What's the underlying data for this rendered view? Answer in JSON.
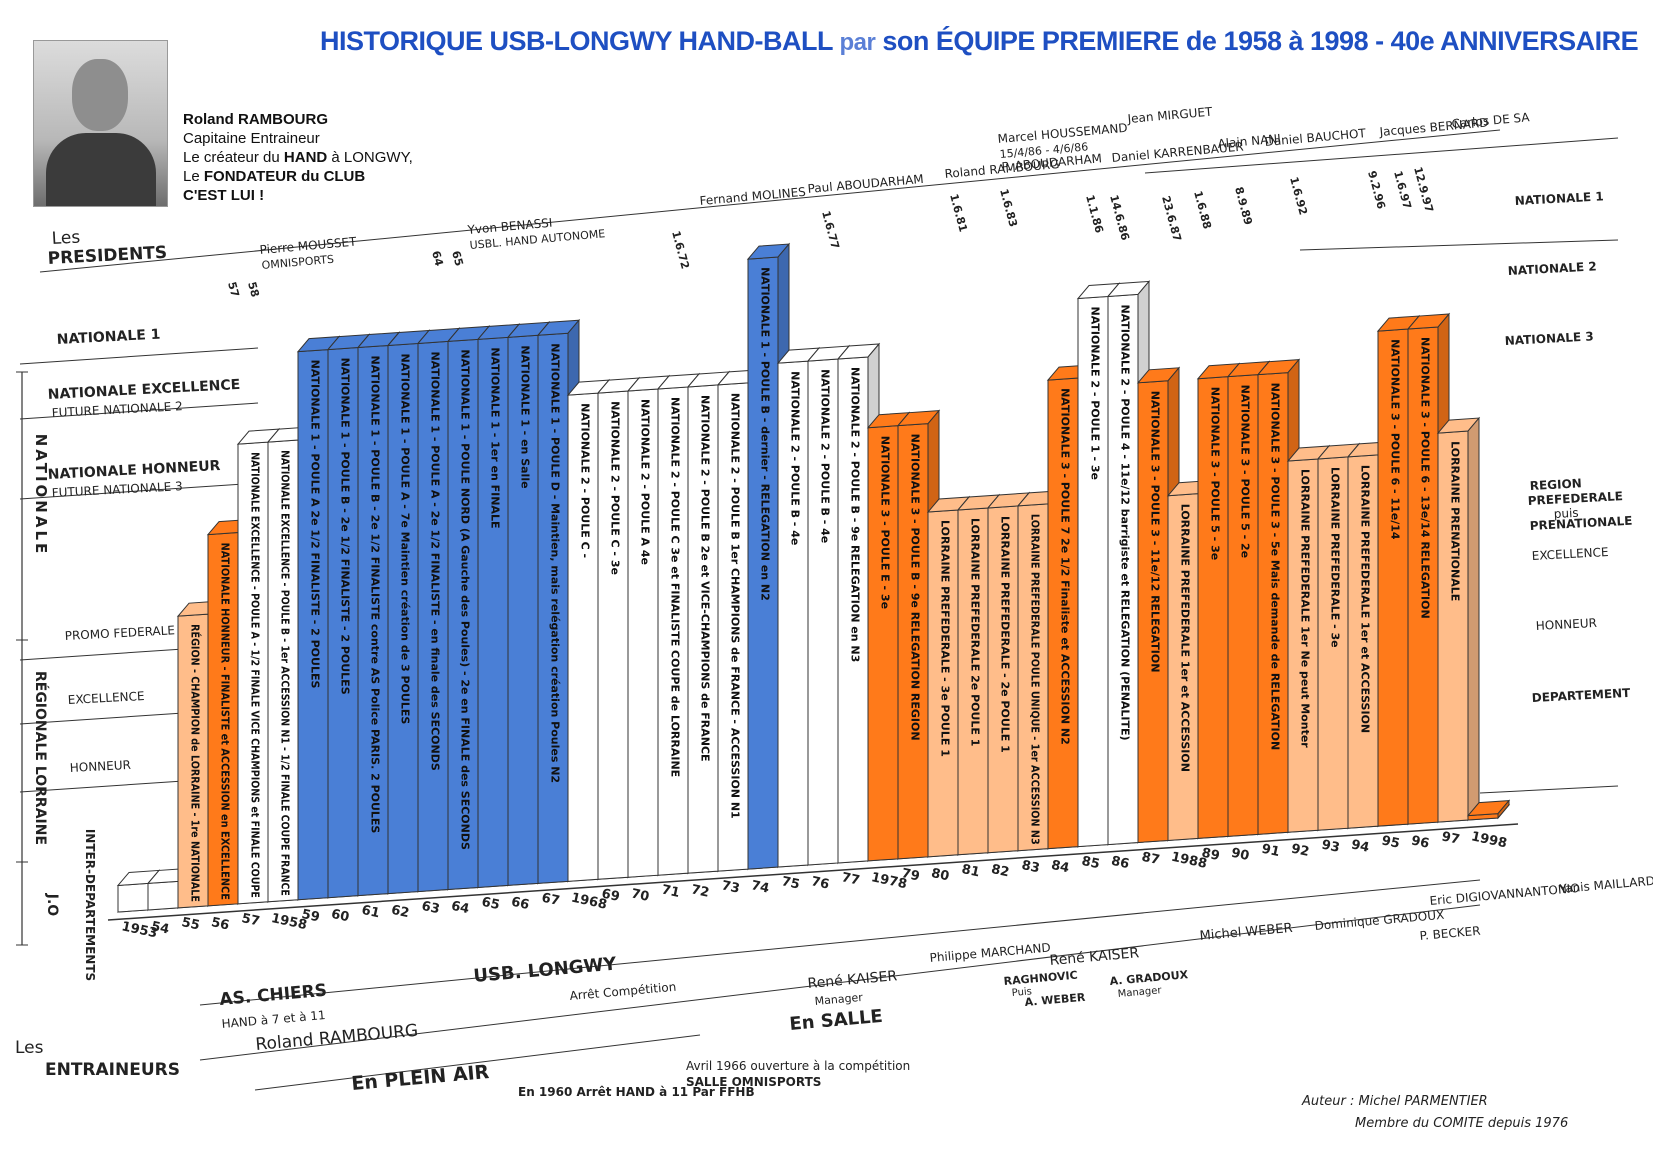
{
  "header": {
    "title_part1": "HISTORIQUE USB-LONGWY HAND-BALL ",
    "title_par": "par",
    "title_part2": " son ÉQUIPE PREMIERE de 1958 à 1998 - 40e ANNIVERSAIRE"
  },
  "bio": {
    "name": "Roland RAMBOURG",
    "line1": "Capitaine Entraineur",
    "line2_pre": "Le créateur du ",
    "line2_bold": "HAND",
    "line2_post": " à LONGWY,",
    "line3_pre": "Le ",
    "line3_bold": "FONDATEUR du CLUB",
    "line4": "C'EST LUI !"
  },
  "colors": {
    "blue": "#4a7fd6",
    "orange": "#ff7a1a",
    "light_orange": "#ffbd8a",
    "white": "#ffffff",
    "title": "#1e4fc2"
  },
  "levels_left": {
    "nationale": "NATIONALE",
    "regionale": "RÉGIONALE LORRAINE",
    "jo": "J.O",
    "n1": "NATIONALE 1",
    "nexc": "NATIONALE EXCELLENCE",
    "nexc_sub": "FUTURE NATIONALE 2",
    "nhon": "NATIONALE HONNEUR",
    "nhon_sub": "FUTURE NATIONALE 3",
    "promo": "PROMO FEDERALE",
    "exc": "EXCELLENCE",
    "hon": "HONNEUR",
    "interdep": "INTER-DEPARTEMENTS"
  },
  "levels_right": {
    "n1": "NATIONALE 1",
    "n2": "NATIONALE 2",
    "n3": "NATIONALE 3",
    "region": "REGION",
    "pref": "PREFEDERALE",
    "puis": "puis",
    "prenat": "PRENATIONALE",
    "exc": "EXCELLENCE",
    "hon": "HONNEUR",
    "dep": "DEPARTEMENT"
  },
  "presidents": {
    "label1": "Les",
    "label2": "PRESIDENTS",
    "entries": [
      {
        "name": "Pierre MOUSSET",
        "sub": "OMNISPORTS"
      },
      {
        "name": "Yvon BENASSI",
        "sub": "USBL. HAND AUTONOME"
      },
      {
        "name": "Fernand MOLINES",
        "sub": ""
      },
      {
        "name": "Paul ABOUDARHAM",
        "sub": ""
      },
      {
        "name": "Roland RAMBOURG",
        "sub": ""
      },
      {
        "name": "P. ABOUDARHAM",
        "sub": ""
      },
      {
        "name": "Marcel HOUSSEMAND",
        "sub": "15/4/86 - 4/6/86"
      },
      {
        "name": "Jean MIRGUET",
        "sub": ""
      },
      {
        "name": "Daniel KARRENBAUER",
        "sub": ""
      },
      {
        "name": "Alain NANI",
        "sub": ""
      },
      {
        "name": "Daniel BAUCHOT",
        "sub": ""
      },
      {
        "name": "Jacques BERNARD",
        "sub": ""
      },
      {
        "name": "Carlos DE SA",
        "sub": ""
      }
    ],
    "dates": [
      "57",
      "58",
      "64",
      "65",
      "1.6.72",
      "1.6.77",
      "1.6.81",
      "1.6.83",
      "1.1.86",
      "14.6.86",
      "23.6.87",
      "1.6.88",
      "8.9.89",
      "1.6.92",
      "9.2.96",
      "1.6.97",
      "12.9.97"
    ]
  },
  "trainers": {
    "label1": "Les",
    "label2": "ENTRAINEURS",
    "as_chiers": "AS. CHIERS",
    "hand7": "HAND à 7 et à 11",
    "rambourg": "Roland RAMBOURG",
    "usb": "USB. LONGWY",
    "kaiser1": "René KAISER",
    "manager": "Manager",
    "marchand": "Philippe MARCHAND",
    "kaiser2": "René KAISER",
    "raghnovic": "RAGHNOVIC",
    "puis": "Puis",
    "aweber": "A. WEBER",
    "agradoux": "A. GRADOUX",
    "manager2": "Manager",
    "mweber": "Michel WEBER",
    "dgradoux": "Dominique GRADOUX",
    "pbecker": "P. BECKER",
    "eric": "Eric DIGIOVANNANTONIO",
    "yanis": "Yanis MAILLARD",
    "arret": "Arrêt Compétition",
    "en_salle": "En SALLE",
    "plein_air": "En PLEIN AIR",
    "note1960": "En 1960 Arrêt HAND à 11 Par FFHB",
    "note1966_1": "Avril 1966 ouverture à la compétition",
    "note1966_2": "SALLE OMNISPORTS"
  },
  "author": {
    "line1": "Auteur : Michel PARMENTIER",
    "line2": "Membre du COMITE depuis 1976"
  },
  "chart_data": {
    "type": "bar",
    "level_scale": [
      "J.O",
      "HONNEUR",
      "EXCELLENCE",
      "PROMO FEDERALE",
      "NATIONALE HONNEUR",
      "NATIONALE EXCELLENCE",
      "NATIONALE 1"
    ],
    "bars": [
      {
        "year": "1953",
        "level": 0.3,
        "color": "white",
        "text": ""
      },
      {
        "year": "54",
        "level": 0.3,
        "color": "white",
        "text": ""
      },
      {
        "year": "55",
        "level": 3.3,
        "color": "light_orange",
        "text": "RÉGION - CHAMPION de LORRAINE - 1re NATIONALE"
      },
      {
        "year": "56",
        "level": 4.2,
        "color": "orange",
        "text": "NATIONALE HONNEUR - FINALISTE et ACCESSION en EXCELLENCE"
      },
      {
        "year": "57",
        "level": 5.2,
        "color": "white",
        "text": "NATIONALE EXCELLENCE - POULE A - 1/2 FINALE VICE CHAMPIONS et FINALE COUPE"
      },
      {
        "year": "1958",
        "level": 5.2,
        "color": "white",
        "text": "NATIONALE EXCELLENCE - POULE B - 1er ACCESSION N1 - 1/2 FINALE COUPE FRANCE"
      },
      {
        "year": "59",
        "level": 6.2,
        "color": "blue",
        "text": "NATIONALE 1 - POULE A 2e 1/2 FINALISTE - 2 POULES"
      },
      {
        "year": "60",
        "level": 6.2,
        "color": "blue",
        "text": "NATIONALE 1 - POULE B - 2e 1/2 FINALISTE - 2 POULES"
      },
      {
        "year": "61",
        "level": 6.2,
        "color": "blue",
        "text": "NATIONALE 1 - POULE B - 2e 1/2 FINALISTE contre AS Police PARIS. 2 POULES"
      },
      {
        "year": "62",
        "level": 6.2,
        "color": "blue",
        "text": "NATIONALE 1 - POULE A - 7e Maintien création de 3 POULES"
      },
      {
        "year": "63",
        "level": 6.2,
        "color": "blue",
        "text": "NATIONALE 1 - POULE A - 2e 1/2 FINALISTE - en finale des SECONDS"
      },
      {
        "year": "64",
        "level": 6.2,
        "color": "blue",
        "text": "NATIONALE 1 - POULE NORD (A Gauche des Poules) - 2e en FINALE des SECONDS"
      },
      {
        "year": "65",
        "level": 6.2,
        "color": "blue",
        "text": "NATIONALE 1 - 1er en FINALE"
      },
      {
        "year": "66",
        "level": 6.2,
        "color": "blue",
        "text": "NATIONALE 1 - en Salle"
      },
      {
        "year": "67",
        "level": 6.2,
        "color": "blue",
        "text": "NATIONALE 1 - POULE D - Maintien, mais relégation création Poules N2"
      },
      {
        "year": "1968",
        "level": 5.5,
        "color": "white",
        "text": "NATIONALE 2 - POULE C -"
      },
      {
        "year": "69",
        "level": 5.5,
        "color": "white",
        "text": "NATIONALE 2 - POULE C - 3e"
      },
      {
        "year": "70",
        "level": 5.5,
        "color": "white",
        "text": "NATIONALE 2 - POULE A 4e"
      },
      {
        "year": "71",
        "level": 5.5,
        "color": "white",
        "text": "NATIONALE 2 - POULE C 3e et FINALISTE COUPE de LORRAINE"
      },
      {
        "year": "72",
        "level": 5.5,
        "color": "white",
        "text": "NATIONALE 2 - POULE B 2e et VICE-CHAMPIONS de FRANCE"
      },
      {
        "year": "73",
        "level": 5.5,
        "color": "white",
        "text": "NATIONALE 2 - POULE B 1er CHAMPIONS de FRANCE - ACCESSION N1"
      },
      {
        "year": "74",
        "level": 6.9,
        "color": "blue",
        "text": "NATIONALE 1 - POULE B - dernier - RELEGATION en N2"
      },
      {
        "year": "75",
        "level": 5.7,
        "color": "white",
        "text": "NATIONALE 2 - POULE B - 4e"
      },
      {
        "year": "76",
        "level": 5.7,
        "color": "white",
        "text": "NATIONALE 2 - POULE B - 4e"
      },
      {
        "year": "77",
        "level": 5.7,
        "color": "white",
        "text": "NATIONALE 2 - POULE B - 9e RELEGATION en N3"
      },
      {
        "year": "1978",
        "level": 4.9,
        "color": "orange",
        "text": "NATIONALE 3 - POULE E - 3e"
      },
      {
        "year": "79",
        "level": 4.9,
        "color": "orange",
        "text": "NATIONALE 3 - POULE B - 9e RELEGATION REGION"
      },
      {
        "year": "80",
        "level": 3.9,
        "color": "light_orange",
        "text": "LORRAINE PREFEDERALE - 3e POULE 1"
      },
      {
        "year": "81",
        "level": 3.9,
        "color": "light_orange",
        "text": "LORRAINE PREFEDERALE 2e POULE 1"
      },
      {
        "year": "82",
        "level": 3.9,
        "color": "light_orange",
        "text": "LORRAINE PREFEDERALE - 2e POULE 1"
      },
      {
        "year": "83",
        "level": 3.9,
        "color": "light_orange",
        "text": "LORRAINE PREFEDERALE POULE UNIQUE - 1er ACCESSION N3"
      },
      {
        "year": "84",
        "level": 5.3,
        "color": "orange",
        "text": "NATIONALE 3 - POULE 7 2e 1/2 Finaliste et ACCESSION N2"
      },
      {
        "year": "85",
        "level": 6.2,
        "color": "white",
        "text": "NATIONALE 2 - POULE 1 - 3e"
      },
      {
        "year": "86",
        "level": 6.2,
        "color": "white",
        "text": "NATIONALE 2 - POULE 4 - 11e/12 barrigiste et RELEGATION (PENALITE)"
      },
      {
        "year": "87",
        "level": 5.2,
        "color": "orange",
        "text": "NATIONALE 3 - POULE 3 - 11e/12 RELEGATION"
      },
      {
        "year": "1988",
        "level": 3.9,
        "color": "light_orange",
        "text": "LORRAINE PREFEDERALE 1er et ACCESSION"
      },
      {
        "year": "89",
        "level": 5.2,
        "color": "orange",
        "text": "NATIONALE 3 - POULE 5 - 3e"
      },
      {
        "year": "90",
        "level": 5.2,
        "color": "orange",
        "text": "NATIONALE 3 - POULE 5 - 2e"
      },
      {
        "year": "91",
        "level": 5.2,
        "color": "orange",
        "text": "NATIONALE 3 - POULE 3 - 5e Mais demande de RELEGATION"
      },
      {
        "year": "92",
        "level": 4.2,
        "color": "light_orange",
        "text": "LORRAINE PREFEDERALE 1er Ne peut Monter"
      },
      {
        "year": "93",
        "level": 4.2,
        "color": "light_orange",
        "text": "LORRAINE PREFEDERALE - 3e"
      },
      {
        "year": "94",
        "level": 4.2,
        "color": "light_orange",
        "text": "LORRAINE PREFEDERALE 1er et ACCESSION"
      },
      {
        "year": "95",
        "level": 5.6,
        "color": "orange",
        "text": "NATIONALE 3 - POULE 6 - 11e/14"
      },
      {
        "year": "96",
        "level": 5.6,
        "color": "orange",
        "text": "NATIONALE 3 - POULE 6 - 13e/14 RELEGATION"
      },
      {
        "year": "97",
        "level": 4.4,
        "color": "light_orange",
        "text": "LORRAINE PRENATIONALE"
      },
      {
        "year": "1998",
        "level": 0.0,
        "color": "orange",
        "text": ""
      }
    ]
  }
}
